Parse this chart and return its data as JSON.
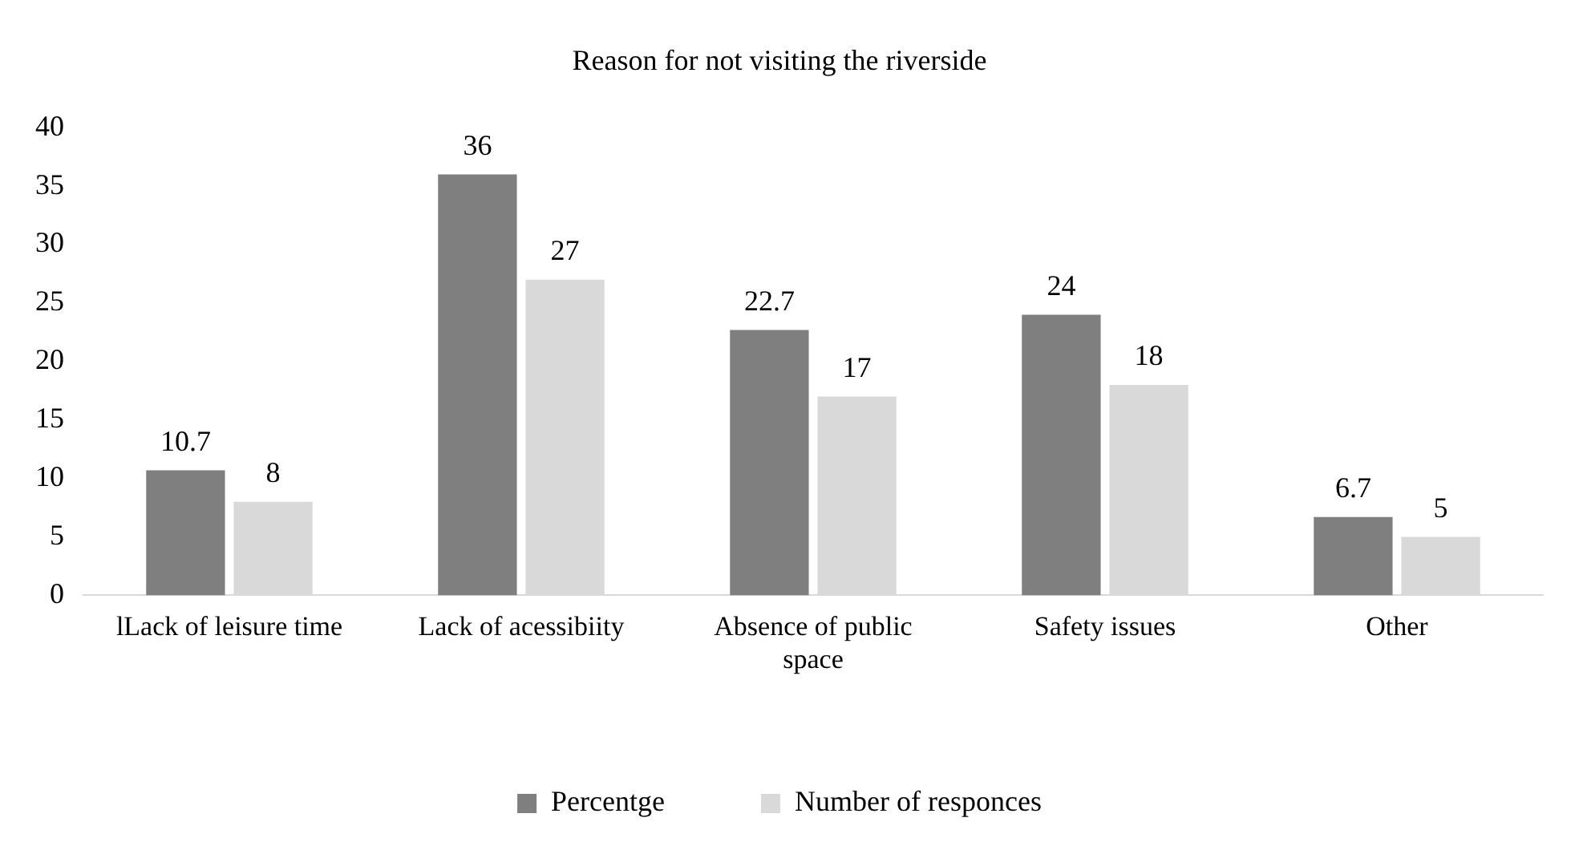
{
  "chart_data": {
    "type": "bar",
    "title": "Reason for not visiting the riverside",
    "categories": [
      "lLack of leisure time",
      "Lack of acessibiity",
      "Absence of public space",
      "Safety issues",
      "Other"
    ],
    "series": [
      {
        "name": "Percentge",
        "color": "#7f7f7f",
        "values": [
          10.7,
          36,
          22.7,
          24,
          6.7
        ]
      },
      {
        "name": "Number of responces",
        "color": "#d9d9d9",
        "values": [
          8,
          27,
          17,
          18,
          5
        ]
      }
    ],
    "ylim": [
      0,
      40
    ],
    "yticks": [
      0,
      5,
      10,
      15,
      20,
      25,
      30,
      35,
      40
    ],
    "grid": false,
    "legend": "bottom",
    "data_labels": true
  }
}
